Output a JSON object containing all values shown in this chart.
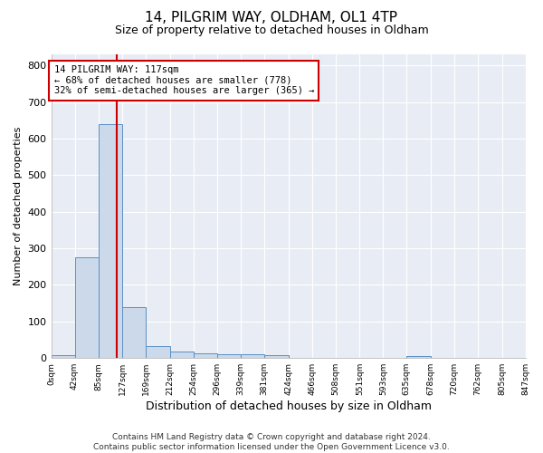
{
  "title1": "14, PILGRIM WAY, OLDHAM, OL1 4TP",
  "title2": "Size of property relative to detached houses in Oldham",
  "xlabel": "Distribution of detached houses by size in Oldham",
  "ylabel": "Number of detached properties",
  "bin_edges": [
    0,
    42,
    85,
    127,
    169,
    212,
    254,
    296,
    339,
    381,
    424,
    466,
    508,
    551,
    593,
    635,
    678,
    720,
    762,
    805,
    847
  ],
  "bar_heights": [
    8,
    275,
    640,
    138,
    33,
    18,
    12,
    10,
    10,
    9,
    0,
    0,
    0,
    0,
    0,
    6,
    0,
    0,
    0,
    0
  ],
  "bar_color": "#ccd9ea",
  "bar_edge_color": "#5b8fc4",
  "property_size": 117,
  "vline_color": "#cc0000",
  "annotation_text": "14 PILGRIM WAY: 117sqm\n← 68% of detached houses are smaller (778)\n32% of semi-detached houses are larger (365) →",
  "annotation_box_color": "#ffffff",
  "annotation_border_color": "#cc0000",
  "ylim": [
    0,
    830
  ],
  "yticks": [
    0,
    100,
    200,
    300,
    400,
    500,
    600,
    700,
    800
  ],
  "tick_labels": [
    "0sqm",
    "42sqm",
    "85sqm",
    "127sqm",
    "169sqm",
    "212sqm",
    "254sqm",
    "296sqm",
    "339sqm",
    "381sqm",
    "424sqm",
    "466sqm",
    "508sqm",
    "551sqm",
    "593sqm",
    "635sqm",
    "678sqm",
    "720sqm",
    "762sqm",
    "805sqm",
    "847sqm"
  ],
  "footer_text": "Contains HM Land Registry data © Crown copyright and database right 2024.\nContains public sector information licensed under the Open Government Licence v3.0.",
  "fig_bg_color": "#ffffff",
  "plot_bg_color": "#e8edf5",
  "grid_color": "#ffffff",
  "title1_fontsize": 11,
  "title2_fontsize": 9,
  "ylabel_fontsize": 8,
  "xlabel_fontsize": 9,
  "footer_fontsize": 6.5
}
